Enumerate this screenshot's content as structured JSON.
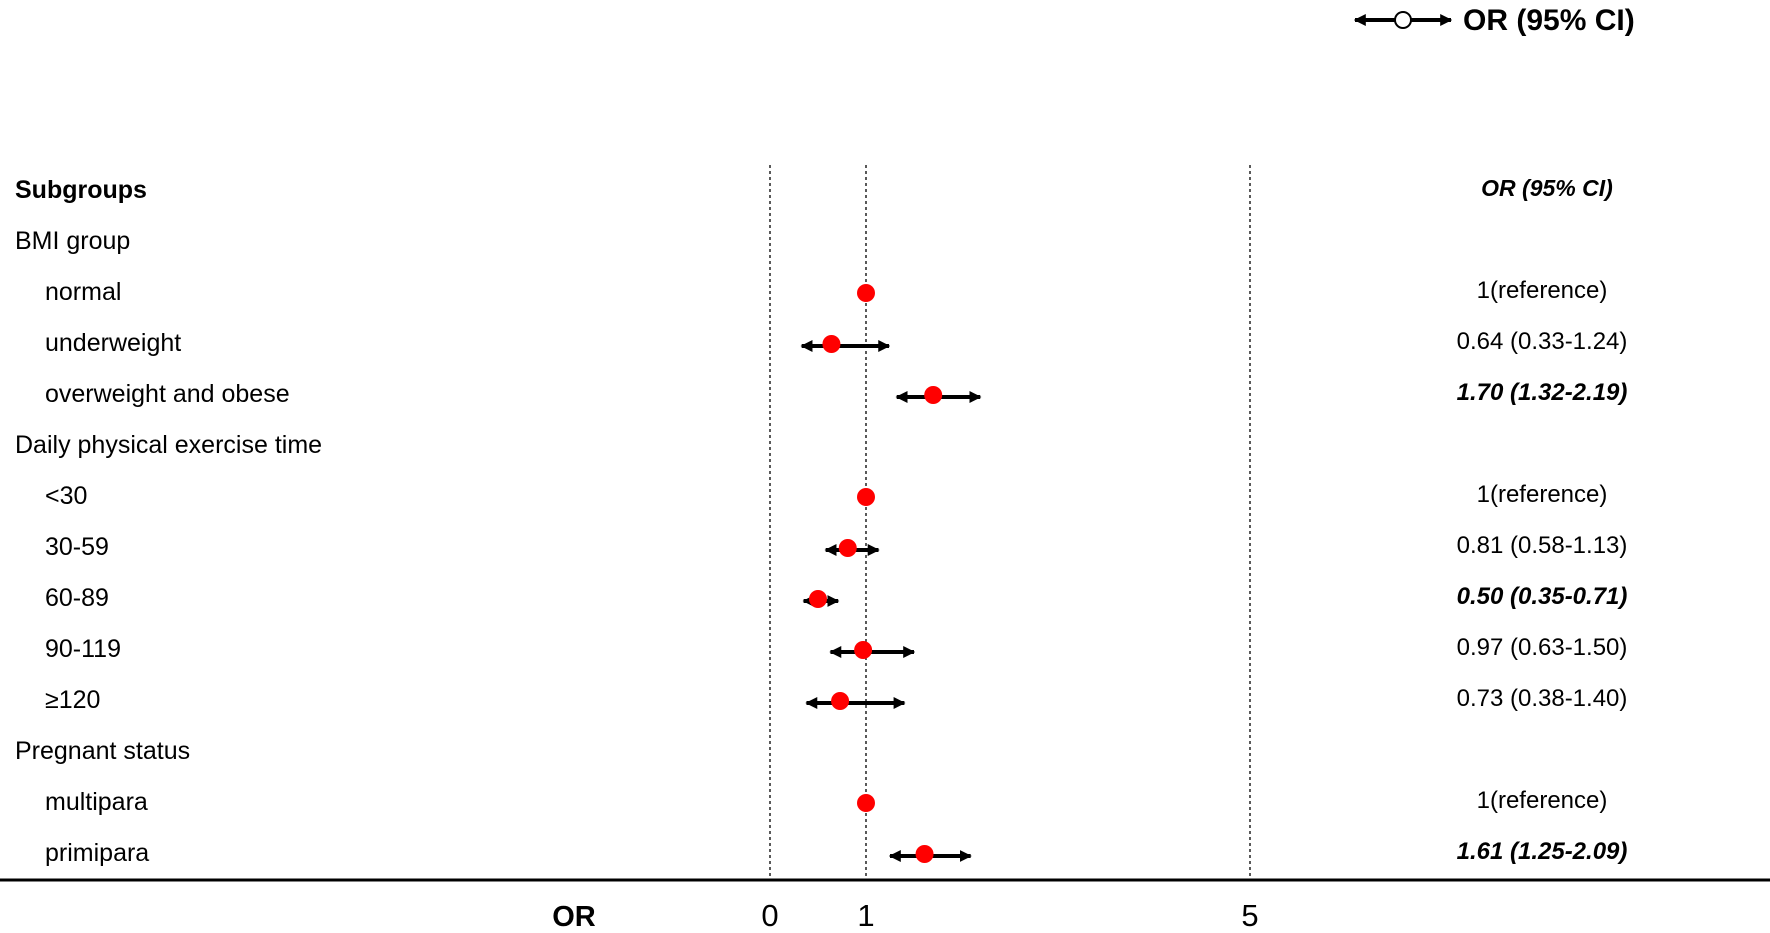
{
  "chart_data": {
    "type": "forest",
    "title": "",
    "xlabel": "OR",
    "xlim": [
      0,
      9.5
    ],
    "x_ticks": [
      0,
      1,
      5
    ],
    "reference_lines": [
      0,
      1,
      5
    ],
    "legend": {
      "label": "OR (95% CI)",
      "placement": "top-right"
    },
    "header": {
      "subgroups": "Subgroups",
      "or_ci": "OR (95% CI)"
    },
    "colors": {
      "point": "#ff0000",
      "ci": "#000000",
      "grid": "#000000"
    },
    "rows": [
      {
        "label": "BMI group",
        "level": 0
      },
      {
        "label": "normal",
        "level": 1,
        "or": 1.0,
        "text": "1(reference)",
        "significant": false
      },
      {
        "label": "underweight",
        "level": 1,
        "or": 0.64,
        "lower": 0.33,
        "upper": 1.24,
        "text": "0.64 (0.33-1.24)",
        "significant": false
      },
      {
        "label": "overweight and obese",
        "level": 1,
        "or": 1.7,
        "lower": 1.32,
        "upper": 2.19,
        "text": "1.70 (1.32-2.19)",
        "significant": true
      },
      {
        "label": "Daily physical exercise time",
        "level": 0
      },
      {
        "label": "<30",
        "level": 1,
        "or": 1.0,
        "text": "1(reference)",
        "significant": false
      },
      {
        "label": "30-59",
        "level": 1,
        "or": 0.81,
        "lower": 0.58,
        "upper": 1.13,
        "text": "0.81 (0.58-1.13)",
        "significant": false
      },
      {
        "label": "60-89",
        "level": 1,
        "or": 0.5,
        "lower": 0.35,
        "upper": 0.71,
        "text": "0.50 (0.35-0.71)",
        "significant": true
      },
      {
        "label": "90-119",
        "level": 1,
        "or": 0.97,
        "lower": 0.63,
        "upper": 1.5,
        "text": "0.97 (0.63-1.50)",
        "significant": false
      },
      {
        "label": "≥120",
        "level": 1,
        "or": 0.73,
        "lower": 0.38,
        "upper": 1.4,
        "text": "0.73 (0.38-1.40)",
        "significant": false
      },
      {
        "label": "Pregnant status",
        "level": 0
      },
      {
        "label": "multipara",
        "level": 1,
        "or": 1.0,
        "text": "1(reference)",
        "significant": false
      },
      {
        "label": "primipara",
        "level": 1,
        "or": 1.61,
        "lower": 1.25,
        "upper": 2.09,
        "text": "1.61 (1.25-2.09)",
        "significant": true
      }
    ]
  }
}
